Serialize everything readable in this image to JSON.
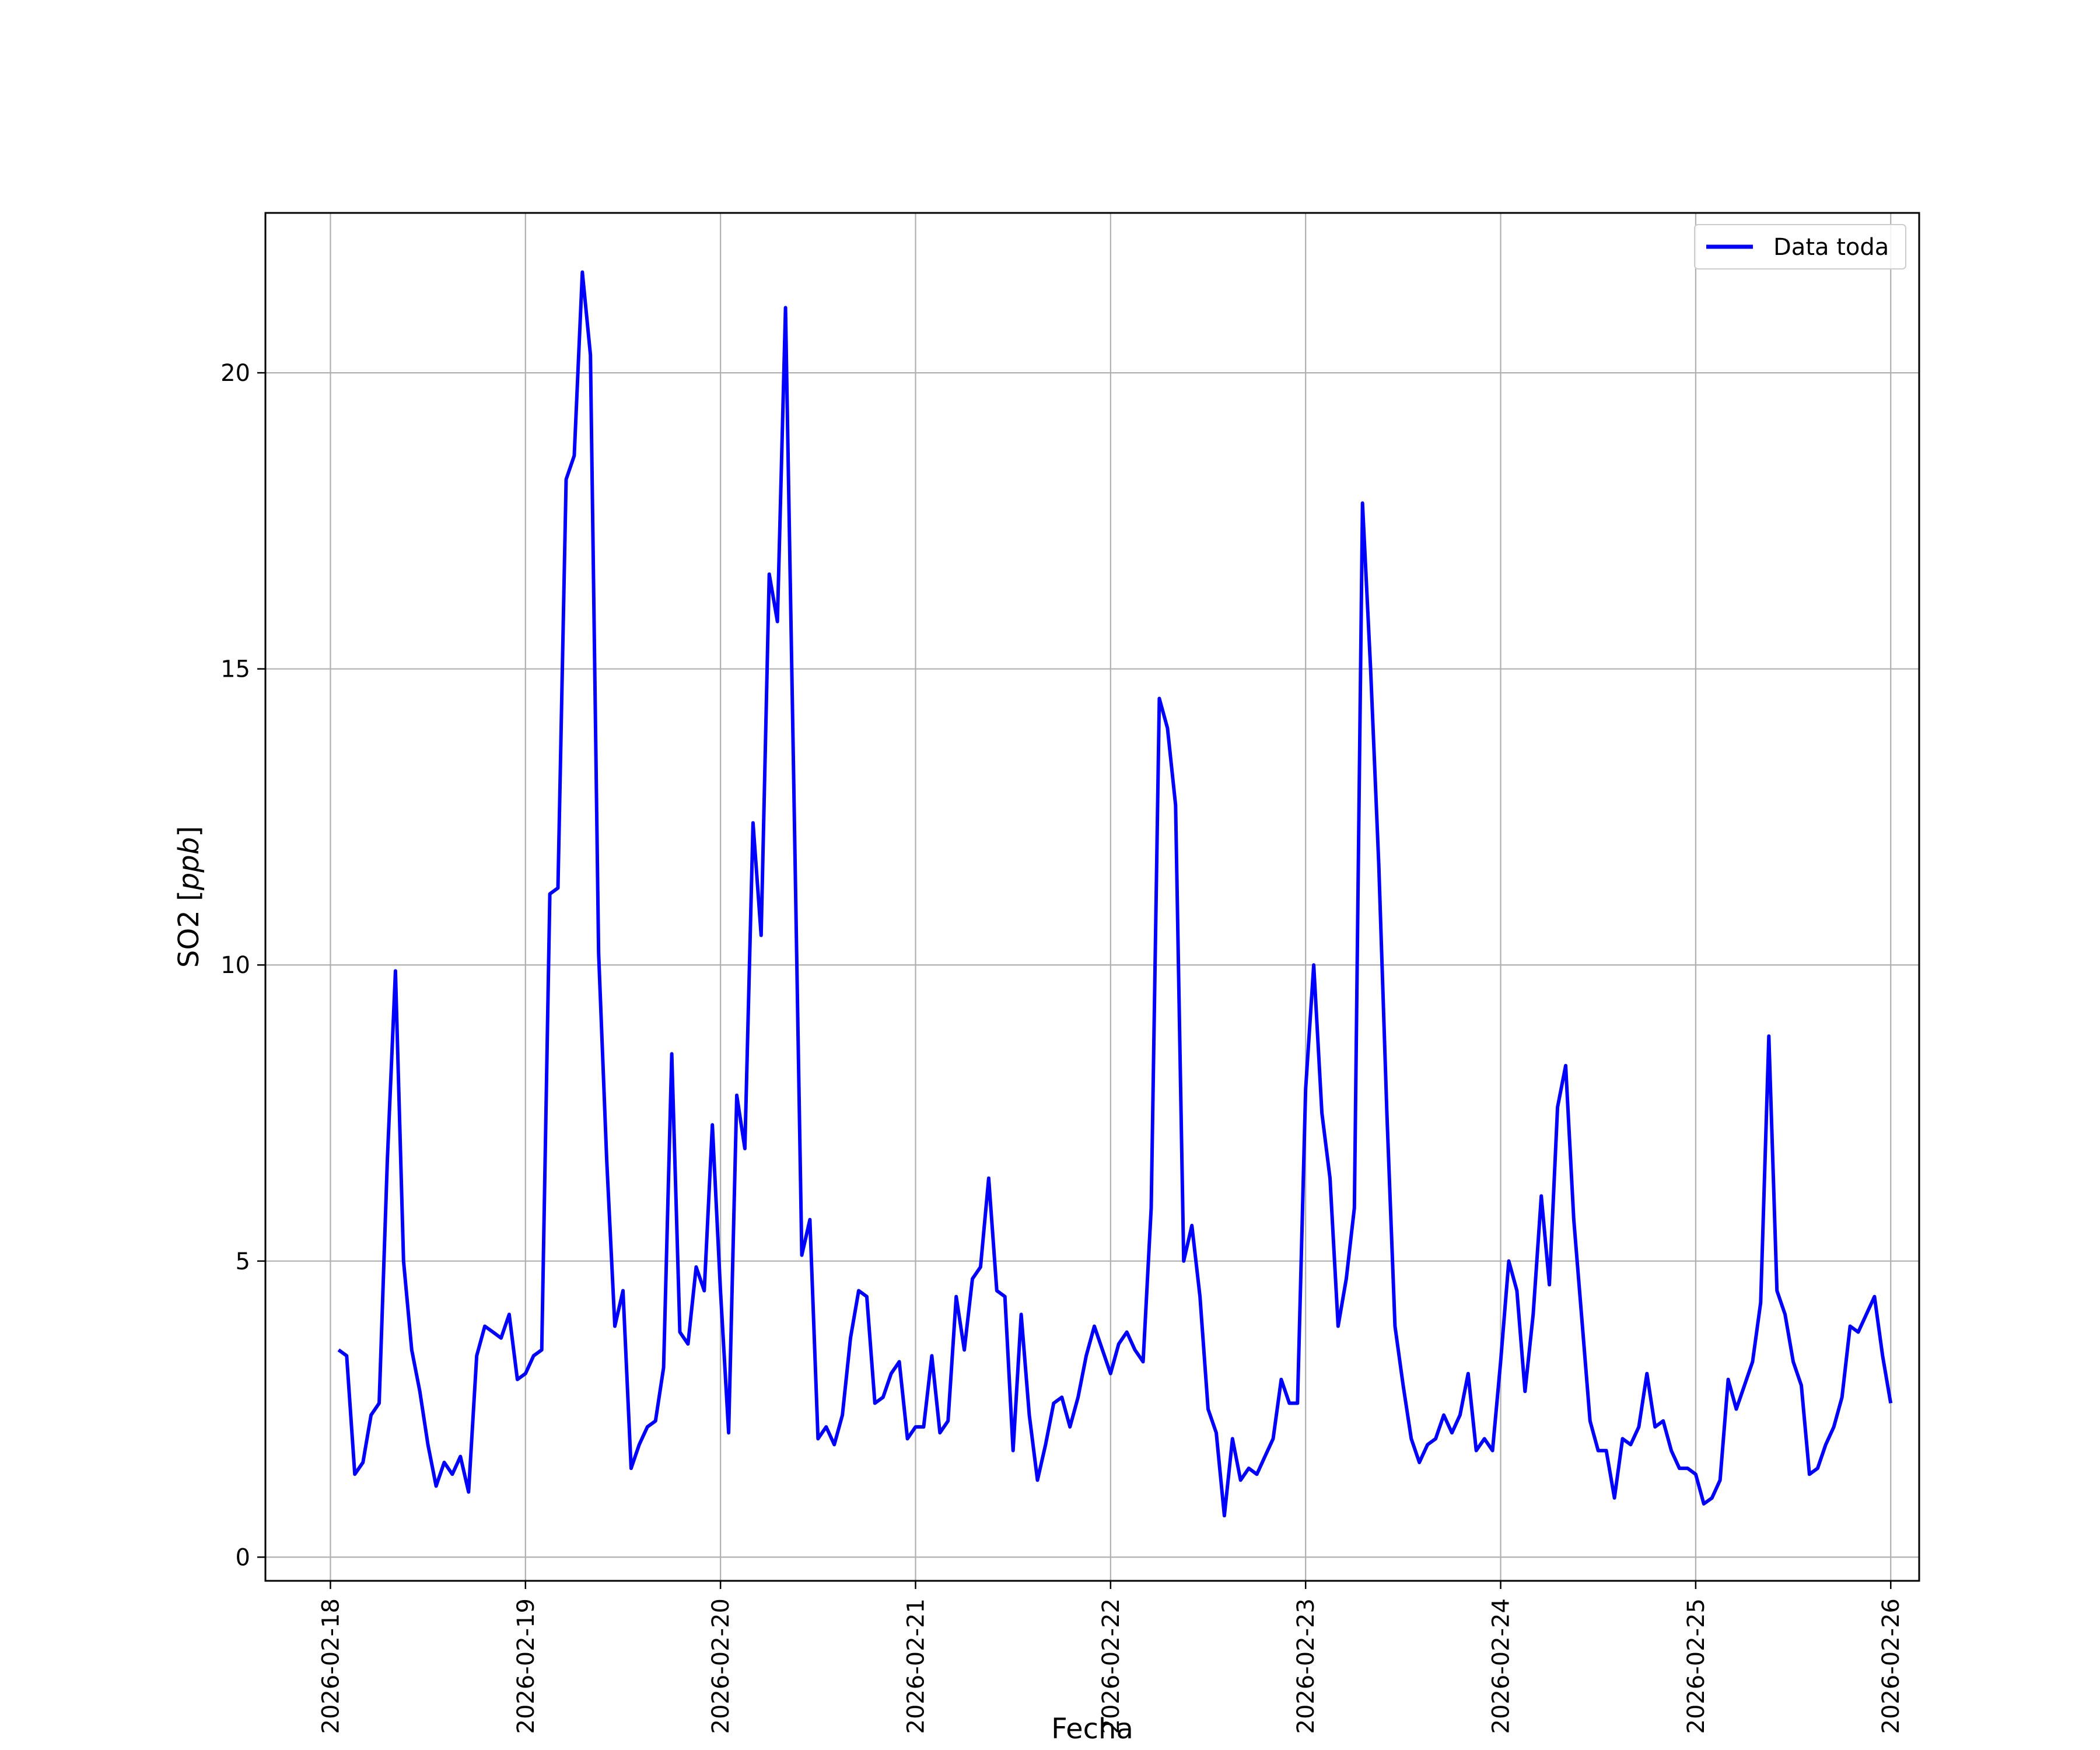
{
  "chart_data": {
    "type": "line",
    "title": "",
    "xlabel": "Fecha",
    "ylabel_text": "SO2 [",
    "ylabel_unit": "ppb",
    "ylabel_close": "]",
    "xlim": [
      "2026-02-17T16:00",
      "2026-02-26T03:30"
    ],
    "ylim": [
      -0.4,
      22.7
    ],
    "xticks": [
      "2026-02-18",
      "2026-02-19",
      "2026-02-20",
      "2026-02-21",
      "2026-02-22",
      "2026-02-23",
      "2026-02-24",
      "2026-02-25",
      "2026-02-26"
    ],
    "yticks": [
      0,
      5,
      10,
      15,
      20
    ],
    "grid": true,
    "legend_position": "top-right",
    "colors": {
      "line": "#0000ff",
      "grid": "#b0b0b0"
    },
    "series": [
      {
        "name": "Data toda",
        "x": [
          "2026-02-18T01:00",
          "2026-02-18T02:00",
          "2026-02-18T03:00",
          "2026-02-18T04:00",
          "2026-02-18T05:00",
          "2026-02-18T06:00",
          "2026-02-18T07:00",
          "2026-02-18T08:00",
          "2026-02-18T09:00",
          "2026-02-18T10:00",
          "2026-02-18T11:00",
          "2026-02-18T12:00",
          "2026-02-18T13:00",
          "2026-02-18T14:00",
          "2026-02-18T15:00",
          "2026-02-18T16:00",
          "2026-02-18T17:00",
          "2026-02-18T18:00",
          "2026-02-18T19:00",
          "2026-02-18T20:00",
          "2026-02-18T21:00",
          "2026-02-18T22:00",
          "2026-02-18T23:00",
          "2026-02-19T00:00",
          "2026-02-19T01:00",
          "2026-02-19T02:00",
          "2026-02-19T03:00",
          "2026-02-19T04:00",
          "2026-02-19T05:00",
          "2026-02-19T06:00",
          "2026-02-19T07:00",
          "2026-02-19T08:00",
          "2026-02-19T09:00",
          "2026-02-19T10:00",
          "2026-02-19T11:00",
          "2026-02-19T12:00",
          "2026-02-19T13:00",
          "2026-02-19T14:00",
          "2026-02-19T15:00",
          "2026-02-19T16:00",
          "2026-02-19T17:00",
          "2026-02-19T18:00",
          "2026-02-19T19:00",
          "2026-02-19T20:00",
          "2026-02-19T21:00",
          "2026-02-19T22:00",
          "2026-02-19T23:00",
          "2026-02-20T00:00",
          "2026-02-20T01:00",
          "2026-02-20T02:00",
          "2026-02-20T03:00",
          "2026-02-20T04:00",
          "2026-02-20T05:00",
          "2026-02-20T06:00",
          "2026-02-20T07:00",
          "2026-02-20T08:00",
          "2026-02-20T09:00",
          "2026-02-20T10:00",
          "2026-02-20T11:00",
          "2026-02-20T12:00",
          "2026-02-20T13:00",
          "2026-02-20T14:00",
          "2026-02-20T15:00",
          "2026-02-20T16:00",
          "2026-02-20T17:00",
          "2026-02-20T18:00",
          "2026-02-20T19:00",
          "2026-02-20T20:00",
          "2026-02-20T21:00",
          "2026-02-20T22:00",
          "2026-02-20T23:00",
          "2026-02-21T00:00",
          "2026-02-21T01:00",
          "2026-02-21T02:00",
          "2026-02-21T03:00",
          "2026-02-21T04:00",
          "2026-02-21T05:00",
          "2026-02-21T06:00",
          "2026-02-21T07:00",
          "2026-02-21T08:00",
          "2026-02-21T09:00",
          "2026-02-21T10:00",
          "2026-02-21T11:00",
          "2026-02-21T12:00",
          "2026-02-21T13:00",
          "2026-02-21T14:00",
          "2026-02-21T15:00",
          "2026-02-21T16:00",
          "2026-02-21T17:00",
          "2026-02-21T18:00",
          "2026-02-21T19:00",
          "2026-02-21T20:00",
          "2026-02-21T21:00",
          "2026-02-21T22:00",
          "2026-02-21T23:00",
          "2026-02-22T00:00",
          "2026-02-22T01:00",
          "2026-02-22T02:00",
          "2026-02-22T03:00",
          "2026-02-22T04:00",
          "2026-02-22T05:00",
          "2026-02-22T06:00",
          "2026-02-22T07:00",
          "2026-02-22T08:00",
          "2026-02-22T09:00",
          "2026-02-22T10:00",
          "2026-02-22T11:00",
          "2026-02-22T12:00",
          "2026-02-22T13:00",
          "2026-02-22T14:00",
          "2026-02-22T15:00",
          "2026-02-22T16:00",
          "2026-02-22T17:00",
          "2026-02-22T18:00",
          "2026-02-22T19:00",
          "2026-02-22T20:00",
          "2026-02-22T21:00",
          "2026-02-22T22:00",
          "2026-02-22T23:00",
          "2026-02-23T00:00",
          "2026-02-23T01:00",
          "2026-02-23T02:00",
          "2026-02-23T03:00",
          "2026-02-23T04:00",
          "2026-02-23T05:00",
          "2026-02-23T06:00",
          "2026-02-23T07:00",
          "2026-02-23T08:00",
          "2026-02-23T09:00",
          "2026-02-23T10:00",
          "2026-02-23T11:00",
          "2026-02-23T12:00",
          "2026-02-23T13:00",
          "2026-02-23T14:00",
          "2026-02-23T15:00",
          "2026-02-23T16:00",
          "2026-02-23T17:00",
          "2026-02-23T18:00",
          "2026-02-23T19:00",
          "2026-02-23T20:00",
          "2026-02-23T21:00",
          "2026-02-23T22:00",
          "2026-02-23T23:00",
          "2026-02-24T00:00",
          "2026-02-24T01:00",
          "2026-02-24T02:00",
          "2026-02-24T03:00",
          "2026-02-24T04:00",
          "2026-02-24T05:00",
          "2026-02-24T06:00",
          "2026-02-24T07:00",
          "2026-02-24T08:00",
          "2026-02-24T09:00",
          "2026-02-24T10:00",
          "2026-02-24T11:00",
          "2026-02-24T12:00",
          "2026-02-24T13:00",
          "2026-02-24T14:00",
          "2026-02-24T15:00",
          "2026-02-24T16:00",
          "2026-02-24T17:00",
          "2026-02-24T18:00",
          "2026-02-24T19:00",
          "2026-02-24T20:00",
          "2026-02-24T21:00",
          "2026-02-24T22:00",
          "2026-02-24T23:00",
          "2026-02-25T00:00",
          "2026-02-25T01:00",
          "2026-02-25T02:00",
          "2026-02-25T03:00",
          "2026-02-25T04:00",
          "2026-02-25T05:00",
          "2026-02-25T06:00",
          "2026-02-25T07:00",
          "2026-02-25T08:00",
          "2026-02-25T09:00",
          "2026-02-25T10:00",
          "2026-02-25T11:00",
          "2026-02-25T12:00",
          "2026-02-25T13:00",
          "2026-02-25T14:00",
          "2026-02-25T15:00",
          "2026-02-25T16:00",
          "2026-02-25T17:00",
          "2026-02-25T18:00",
          "2026-02-25T19:00",
          "2026-02-25T20:00",
          "2026-02-25T21:00",
          "2026-02-25T22:00",
          "2026-02-25T23:00",
          "2026-02-26T00:00"
        ],
        "values": [
          3.5,
          3.4,
          1.4,
          1.6,
          2.4,
          2.6,
          6.7,
          9.9,
          5.0,
          3.5,
          2.8,
          1.9,
          1.2,
          1.6,
          1.4,
          1.7,
          1.1,
          3.4,
          3.9,
          3.8,
          3.7,
          4.1,
          3.0,
          3.1,
          3.4,
          3.5,
          11.2,
          11.3,
          18.2,
          18.6,
          21.7,
          20.3,
          10.2,
          6.7,
          3.9,
          4.5,
          1.5,
          1.9,
          2.2,
          2.3,
          3.2,
          8.5,
          3.8,
          3.6,
          4.9,
          4.5,
          7.3,
          4.5,
          2.1,
          7.8,
          6.9,
          12.4,
          10.5,
          16.6,
          15.8,
          21.1,
          13.2,
          5.1,
          5.7,
          2.0,
          2.2,
          1.9,
          2.4,
          3.7,
          4.5,
          4.4,
          2.6,
          2.7,
          3.1,
          3.3,
          2.0,
          2.2,
          2.2,
          3.4,
          2.1,
          2.3,
          4.4,
          3.5,
          4.7,
          4.9,
          6.4,
          4.5,
          4.4,
          1.8,
          4.1,
          2.4,
          1.3,
          1.9,
          2.6,
          2.7,
          2.2,
          2.7,
          3.4,
          3.9,
          3.5,
          3.1,
          3.6,
          3.8,
          3.5,
          3.3,
          5.9,
          14.5,
          14.0,
          12.7,
          5.0,
          5.6,
          4.4,
          2.5,
          2.1,
          0.7,
          2.0,
          1.3,
          1.5,
          1.4,
          1.7,
          2.0,
          3.0,
          2.6,
          2.6,
          7.9,
          10.0,
          7.5,
          6.4,
          3.9,
          4.7,
          5.9,
          17.8,
          15.0,
          11.7,
          7.5,
          3.9,
          2.9,
          2.0,
          1.6,
          1.9,
          2.0,
          2.4,
          2.1,
          2.4,
          3.1,
          1.8,
          2.0,
          1.8,
          3.3,
          5.0,
          4.5,
          2.8,
          4.1,
          6.1,
          4.6,
          7.6,
          8.3,
          5.7,
          4.0,
          2.3,
          1.8,
          1.8,
          1.0,
          2.0,
          1.9,
          2.2,
          3.1,
          2.2,
          2.3,
          1.8,
          1.5,
          1.5,
          1.4,
          0.9,
          1.0,
          1.3,
          3.0,
          2.5,
          2.9,
          3.3,
          4.3,
          8.8,
          4.5,
          4.1,
          3.3,
          2.9,
          1.4,
          1.5,
          1.9,
          2.2,
          2.7,
          3.9,
          3.8,
          4.1,
          4.4,
          3.4,
          2.6
        ]
      }
    ]
  }
}
